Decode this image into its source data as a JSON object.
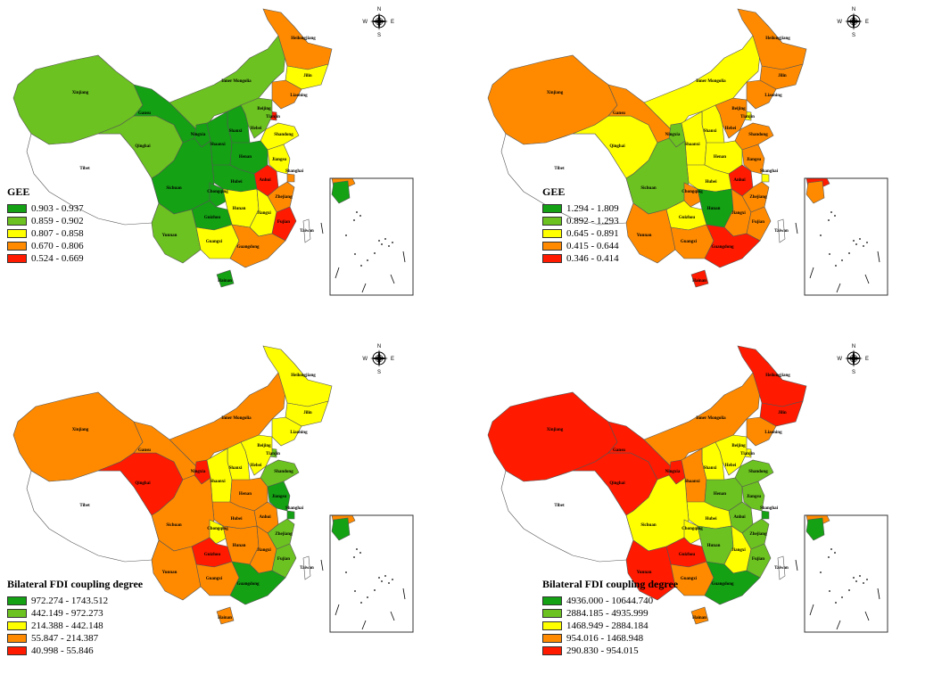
{
  "colors": {
    "dark_green": "#14a114",
    "light_green": "#6cc220",
    "yellow": "#ffff00",
    "orange": "#ff8a00",
    "red": "#ff1a00",
    "tibet": "#ffffff",
    "border": "#555555"
  },
  "panels": [
    {
      "legend_title": "GEE",
      "classes": [
        {
          "range": "0.903 - 0.937",
          "color": "#14a114"
        },
        {
          "range": "0.859 - 0.902",
          "color": "#6cc220"
        },
        {
          "range": "0.807 - 0.858",
          "color": "#ffff00"
        },
        {
          "range": "0.670 - 0.806",
          "color": "#ff8a00"
        },
        {
          "range": "0.524 - 0.669",
          "color": "#ff1a00"
        }
      ],
      "regions": {
        "xinjiang": "#6cc220",
        "tibet": "#ffffff",
        "qinghai": "#6cc220",
        "gansu": "#14a114",
        "inner_mongolia": "#6cc220",
        "heilongjiang": "#ff8a00",
        "jilin": "#ffff00",
        "liaoning": "#ff8a00",
        "ningxia": "#14a114",
        "shaanxi": "#14a114",
        "shanxi": "#14a114",
        "hebei": "#6cc220",
        "beijing": "#14a114",
        "tianjin": "#ff1a00",
        "shandong": "#ffff00",
        "henan": "#14a114",
        "sichuan": "#14a114",
        "chongqing": "#14a114",
        "hubei": "#14a114",
        "anhui": "#ff1a00",
        "jiangsu": "#ffff00",
        "shanghai": "#ff8a00",
        "zhejiang": "#ff8a00",
        "yunnan": "#6cc220",
        "guizhou": "#14a114",
        "hunan": "#ffff00",
        "jiangxi": "#ffff00",
        "fujian": "#ff1a00",
        "guangxi": "#ffff00",
        "guangdong": "#ff8a00",
        "hainan": "#14a114",
        "taiwan": "#ffffff",
        "inset_south": "#ff8a00",
        "inset_north": "#14a114"
      }
    },
    {
      "legend_title": "GEE",
      "classes": [
        {
          "range": "1.294 - 1.809",
          "color": "#14a114"
        },
        {
          "range": "0.892 - 1.293",
          "color": "#6cc220"
        },
        {
          "range": "0.645 - 0.891",
          "color": "#ffff00"
        },
        {
          "range": "0.415 - 0.644",
          "color": "#ff8a00"
        },
        {
          "range": "0.346 - 0.414",
          "color": "#ff1a00"
        }
      ],
      "regions": {
        "xinjiang": "#ff8a00",
        "tibet": "#ffffff",
        "qinghai": "#ffff00",
        "gansu": "#ff8a00",
        "inner_mongolia": "#ffff00",
        "heilongjiang": "#ff8a00",
        "jilin": "#ff8a00",
        "liaoning": "#ff8a00",
        "ningxia": "#6cc220",
        "shaanxi": "#ffff00",
        "shanxi": "#ffff00",
        "hebei": "#ff8a00",
        "beijing": "#ffff00",
        "tianjin": "#ffff00",
        "shandong": "#ff8a00",
        "henan": "#ffff00",
        "sichuan": "#6cc220",
        "chongqing": "#ff8a00",
        "hubei": "#ffff00",
        "anhui": "#ff1a00",
        "jiangsu": "#ff8a00",
        "shanghai": "#ffff00",
        "zhejiang": "#ff8a00",
        "yunnan": "#ff8a00",
        "guizhou": "#ffff00",
        "hunan": "#14a114",
        "jiangxi": "#ff8a00",
        "fujian": "#ff8a00",
        "guangxi": "#ff8a00",
        "guangdong": "#ff1a00",
        "hainan": "#ff1a00",
        "taiwan": "#ffffff",
        "inset_south": "#ff1a00",
        "inset_north": "#ff8a00"
      }
    },
    {
      "legend_title": "Bilateral FDI coupling degree",
      "classes": [
        {
          "range": "972.274 - 1743.512",
          "color": "#14a114"
        },
        {
          "range": "442.149 - 972.273",
          "color": "#6cc220"
        },
        {
          "range": "214.388 - 442.148",
          "color": "#ffff00"
        },
        {
          "range": "55.847 - 214.387",
          "color": "#ff8a00"
        },
        {
          "range": "40.998 - 55.846",
          "color": "#ff1a00"
        }
      ],
      "regions": {
        "xinjiang": "#ff8a00",
        "tibet": "#ffffff",
        "qinghai": "#ff1a00",
        "gansu": "#ff8a00",
        "inner_mongolia": "#ff8a00",
        "heilongjiang": "#ffff00",
        "jilin": "#ffff00",
        "liaoning": "#ffff00",
        "ningxia": "#ff1a00",
        "shaanxi": "#ffff00",
        "shanxi": "#ffff00",
        "hebei": "#ffff00",
        "beijing": "#6cc220",
        "tianjin": "#6cc220",
        "shandong": "#6cc220",
        "henan": "#ff8a00",
        "sichuan": "#ff8a00",
        "chongqing": "#ffff00",
        "hubei": "#ff8a00",
        "anhui": "#ff8a00",
        "jiangsu": "#14a114",
        "shanghai": "#14a114",
        "zhejiang": "#6cc220",
        "yunnan": "#ff8a00",
        "guizhou": "#ff1a00",
        "hunan": "#ff8a00",
        "jiangxi": "#ff8a00",
        "fujian": "#6cc220",
        "guangxi": "#ff8a00",
        "guangdong": "#14a114",
        "hainan": "#ff8a00",
        "taiwan": "#ffffff",
        "inset_south": "#ff8a00",
        "inset_north": "#14a114"
      }
    },
    {
      "legend_title": "Bilateral FDI coupling degree",
      "classes": [
        {
          "range": "4936.000 - 10644.740",
          "color": "#14a114"
        },
        {
          "range": "2884.185 - 4935.999",
          "color": "#6cc220"
        },
        {
          "range": "1468.949 - 2884.184",
          "color": "#ffff00"
        },
        {
          "range": "954.016 - 1468.948",
          "color": "#ff8a00"
        },
        {
          "range": "290.830 - 954.015",
          "color": "#ff1a00"
        }
      ],
      "regions": {
        "xinjiang": "#ff1a00",
        "tibet": "#ffffff",
        "qinghai": "#ff1a00",
        "gansu": "#ff1a00",
        "inner_mongolia": "#ff8a00",
        "heilongjiang": "#ff1a00",
        "jilin": "#ff1a00",
        "liaoning": "#ff8a00",
        "ningxia": "#ff1a00",
        "shaanxi": "#ff8a00",
        "shanxi": "#ffff00",
        "hebei": "#ffff00",
        "beijing": "#ffff00",
        "tianjin": "#ffff00",
        "shandong": "#6cc220",
        "henan": "#6cc220",
        "sichuan": "#ffff00",
        "chongqing": "#ffff00",
        "hubei": "#ffff00",
        "anhui": "#6cc220",
        "jiangsu": "#6cc220",
        "shanghai": "#14a114",
        "zhejiang": "#6cc220",
        "yunnan": "#ff1a00",
        "guizhou": "#ff1a00",
        "hunan": "#6cc220",
        "jiangxi": "#ffff00",
        "fujian": "#6cc220",
        "guangxi": "#ff8a00",
        "guangdong": "#14a114",
        "hainan": "#ff8a00",
        "taiwan": "#ffffff",
        "inset_south": "#ff8a00",
        "inset_north": "#14a114"
      }
    }
  ],
  "province_labels": {
    "xinjiang": "Xinjiang",
    "tibet": "Tibet",
    "qinghai": "Qinghai",
    "gansu": "Gansu",
    "inner_mongolia": "Inner Mongolia",
    "heilongjiang": "Heilongjiang",
    "jilin": "Jilin",
    "liaoning": "Liaoning",
    "ningxia": "Ningxia",
    "shaanxi": "Shaanxi",
    "shanxi": "Shanxi",
    "hebei": "Hebei",
    "beijing": "Beijing",
    "tianjin": "Tianjin",
    "shandong": "Shandong",
    "henan": "Henan",
    "sichuan": "Sichuan",
    "chongqing": "Chongqing",
    "hubei": "Hubei",
    "anhui": "Anhui",
    "jiangsu": "Jiangsu",
    "shanghai": "Shanghai",
    "zhejiang": "Zhejiang",
    "yunnan": "Yunnan",
    "guizhou": "Guizhou",
    "hunan": "Hunan",
    "jiangxi": "Jiangxi",
    "fujian": "Fujian",
    "guangxi": "Guangxi",
    "guangdong": "Guangdong",
    "hainan": "Hainan",
    "taiwan": "Taiwan"
  },
  "compass": {
    "n": "N",
    "s": "S",
    "e": "E",
    "w": "W",
    "icon": "compass-rose-icon"
  }
}
